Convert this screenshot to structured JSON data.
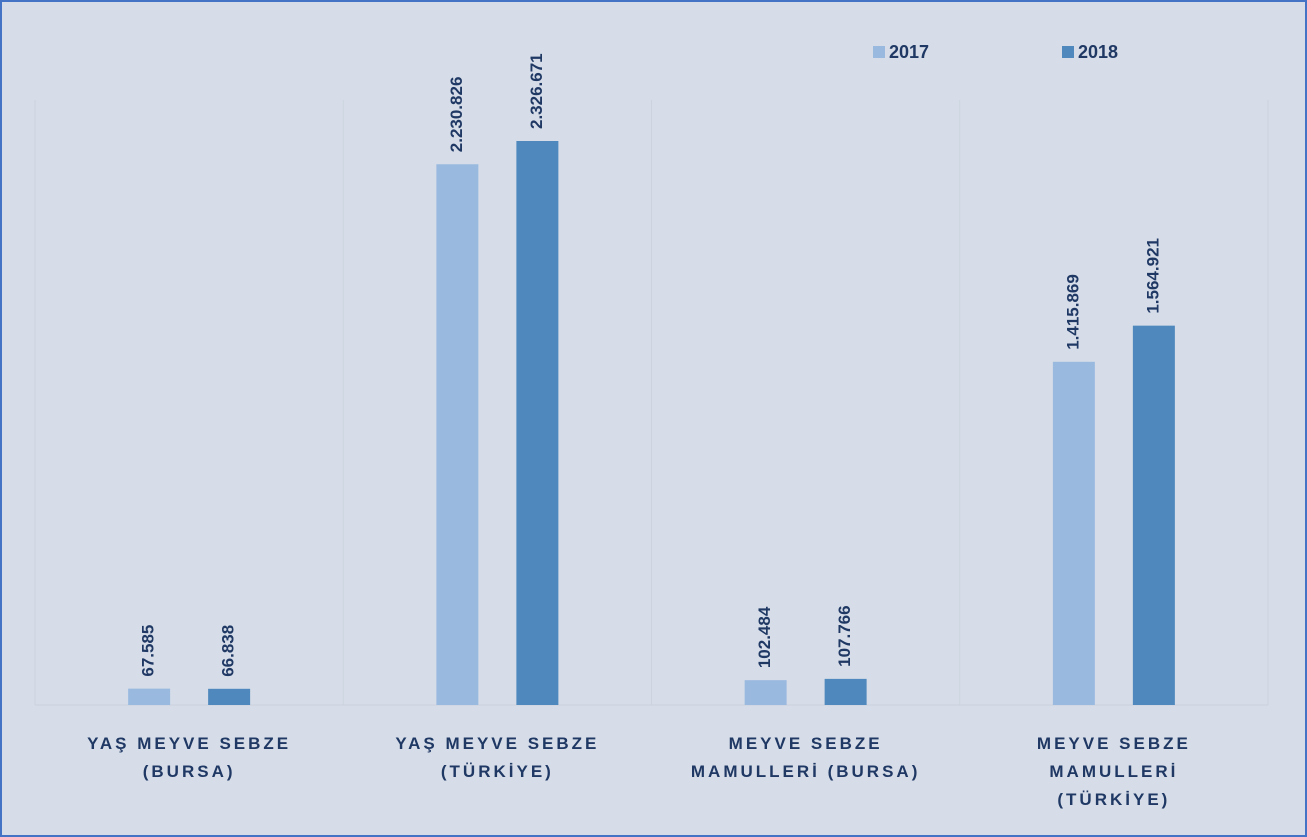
{
  "chart_data": {
    "type": "bar",
    "categories": [
      "YAŞ MEYVE SEBZE (BURSA)",
      "YAŞ MEYVE SEBZE (TÜRKİYE)",
      "MEYVE SEBZE MAMULLERİ (BURSA)",
      "MEYVE SEBZE MAMULLERİ (TÜRKİYE)"
    ],
    "series": [
      {
        "name": "2017",
        "color": "#9ab9df",
        "values": [
          67585,
          2230826,
          102484,
          1415869
        ],
        "value_labels": [
          "67.585",
          "2.230.826",
          "102.484",
          "1.415.869"
        ]
      },
      {
        "name": "2018",
        "color": "#4f88bd",
        "values": [
          66838,
          2326671,
          107766,
          1564921
        ],
        "value_labels": [
          "66.838",
          "2.326.671",
          "107.766",
          "1.564.921"
        ]
      }
    ],
    "legend": "top-right"
  }
}
